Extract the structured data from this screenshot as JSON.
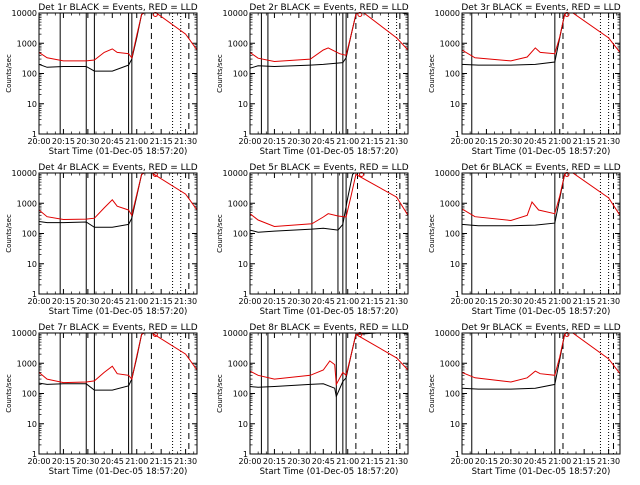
{
  "figure": {
    "x_label": "Start Time (01-Dec-05 18:57:20)",
    "y_label": "Counts/sec"
  },
  "chart_data": [
    {
      "type": "line",
      "title": "Det 1r BLACK = Events, RED = LLD",
      "xlim": [
        "20:00",
        "21:37"
      ],
      "ylim": [
        1,
        10000
      ],
      "y_scale": "log",
      "xticks": [
        "20:00",
        "20:15",
        "20:30",
        "20:45",
        "21:00",
        "21:15",
        "21:30"
      ],
      "yticks": [
        "1",
        "10",
        "100",
        "1000",
        "10000"
      ],
      "solid_markers": [
        "20:13",
        "20:29",
        "20:34",
        "20:55",
        "20:57"
      ],
      "dashed_markers": [
        "21:09",
        "21:32"
      ],
      "dotted_markers": [
        "21:22",
        "21:27"
      ],
      "series": [
        {
          "name": "BLACK = Events",
          "color": "#000000",
          "x": [
            "20:00",
            "20:05",
            "20:15",
            "20:29",
            "20:34",
            "20:45",
            "20:55",
            "20:57",
            "21:00",
            "21:03",
            "21:07",
            "21:10",
            "21:30",
            "21:37"
          ],
          "y": [
            200,
            160,
            170,
            170,
            120,
            120,
            190,
            300,
            1500,
            9000,
            12000,
            12000,
            11000,
            10000
          ]
        },
        {
          "name": "RED = LLD",
          "color": "#e00000",
          "x": [
            "20:00",
            "20:05",
            "20:15",
            "20:29",
            "20:34",
            "20:40",
            "20:45",
            "20:48",
            "20:55",
            "20:57",
            "21:00",
            "21:03",
            "21:07",
            "21:10",
            "21:30",
            "21:37"
          ],
          "y": [
            500,
            330,
            260,
            260,
            280,
            500,
            650,
            500,
            450,
            330,
            1800,
            9000,
            12000,
            12000,
            2000,
            600
          ]
        }
      ]
    },
    {
      "type": "line",
      "title": "Det 2r BLACK = Events, RED = LLD",
      "xlim": [
        "20:00",
        "21:37"
      ],
      "ylim": [
        1,
        10000
      ],
      "y_scale": "log",
      "xticks": [
        "20:00",
        "20:15",
        "20:30",
        "20:45",
        "21:00",
        "21:15",
        "21:30"
      ],
      "yticks": [
        "1",
        "10",
        "100",
        "1000",
        "10000"
      ],
      "solid_markers": [
        "20:07",
        "20:11",
        "20:37",
        "20:53",
        "20:57",
        "20:59"
      ],
      "dashed_markers": [
        "21:05",
        "21:32"
      ],
      "dotted_markers": [
        "21:25",
        "21:30"
      ],
      "series": [
        {
          "name": "BLACK = Events",
          "color": "#000000",
          "x": [
            "20:00",
            "20:05",
            "20:15",
            "20:37",
            "20:45",
            "20:57",
            "20:59",
            "21:02",
            "21:05",
            "21:08",
            "21:30",
            "21:37"
          ],
          "y": [
            150,
            180,
            170,
            190,
            200,
            230,
            330,
            1800,
            9000,
            12000,
            11000,
            9000
          ]
        },
        {
          "name": "RED = LLD",
          "color": "#e00000",
          "x": [
            "20:00",
            "20:05",
            "20:15",
            "20:37",
            "20:45",
            "20:48",
            "20:55",
            "20:59",
            "21:02",
            "21:05",
            "21:08",
            "21:30",
            "21:37"
          ],
          "y": [
            500,
            320,
            250,
            300,
            600,
            700,
            450,
            400,
            1800,
            9000,
            12000,
            1500,
            600
          ]
        }
      ]
    },
    {
      "type": "line",
      "title": "Det 3r BLACK = Events, RED = LLD",
      "xlim": [
        "20:00",
        "21:37"
      ],
      "ylim": [
        1,
        10000
      ],
      "y_scale": "log",
      "xticks": [
        "20:00",
        "20:15",
        "20:30",
        "20:45",
        "21:00",
        "21:15",
        "21:30"
      ],
      "yticks": [
        "1",
        "10",
        "100",
        "1000",
        "10000"
      ],
      "solid_markers": [
        "20:06",
        "20:57"
      ],
      "dashed_markers": [
        "21:02",
        "21:33"
      ],
      "dotted_markers": [
        "21:25",
        "21:30"
      ],
      "series": [
        {
          "name": "BLACK = Events",
          "color": "#000000",
          "x": [
            "20:00",
            "20:10",
            "20:30",
            "20:45",
            "20:57",
            "21:00",
            "21:03",
            "21:06",
            "21:30",
            "21:37"
          ],
          "y": [
            200,
            190,
            190,
            200,
            240,
            1500,
            9000,
            12000,
            11000,
            10000
          ]
        },
        {
          "name": "RED = LLD",
          "color": "#e00000",
          "x": [
            "20:00",
            "20:08",
            "20:30",
            "20:40",
            "20:45",
            "20:48",
            "20:57",
            "21:00",
            "21:03",
            "21:06",
            "21:30",
            "21:37"
          ],
          "y": [
            600,
            330,
            260,
            350,
            700,
            500,
            450,
            1600,
            9000,
            12000,
            1500,
            500
          ]
        }
      ]
    },
    {
      "type": "line",
      "title": "Det 4r BLACK = Events, RED = LLD",
      "xlim": [
        "20:00",
        "21:37"
      ],
      "ylim": [
        1,
        10000
      ],
      "y_scale": "log",
      "xticks": [
        "20:00",
        "20:15",
        "20:30",
        "20:45",
        "21:00",
        "21:15",
        "21:30"
      ],
      "yticks": [
        "1",
        "10",
        "100",
        "1000",
        "10000"
      ],
      "solid_markers": [
        "20:13",
        "20:29",
        "20:34",
        "20:55",
        "20:57"
      ],
      "dashed_markers": [
        "21:09",
        "21:32"
      ],
      "dotted_markers": [
        "21:22",
        "21:27"
      ],
      "series": [
        {
          "name": "BLACK = Events",
          "color": "#000000",
          "x": [
            "20:00",
            "20:05",
            "20:15",
            "20:29",
            "20:34",
            "20:45",
            "20:55",
            "20:57",
            "21:00",
            "21:03",
            "21:07",
            "21:30",
            "21:37"
          ],
          "y": [
            250,
            230,
            230,
            240,
            160,
            160,
            200,
            320,
            1700,
            9000,
            12000,
            11000,
            10000
          ]
        },
        {
          "name": "RED = LLD",
          "color": "#e00000",
          "x": [
            "20:00",
            "20:05",
            "20:15",
            "20:29",
            "20:34",
            "20:40",
            "20:45",
            "20:48",
            "20:55",
            "20:57",
            "21:00",
            "21:03",
            "21:07",
            "21:30",
            "21:37"
          ],
          "y": [
            600,
            360,
            290,
            300,
            320,
            700,
            1300,
            800,
            600,
            400,
            1900,
            9000,
            12000,
            2000,
            600
          ]
        }
      ]
    },
    {
      "type": "line",
      "title": "Det 5r BLACK = Events, RED = LLD",
      "xlim": [
        "20:00",
        "21:37"
      ],
      "ylim": [
        1,
        10000
      ],
      "y_scale": "log",
      "xticks": [
        "20:00",
        "20:15",
        "20:30",
        "20:45",
        "21:00",
        "21:15",
        "21:30"
      ],
      "yticks": [
        "1",
        "10",
        "100",
        "1000",
        "10000"
      ],
      "solid_markers": [
        "20:38",
        "20:54",
        "20:57",
        "20:59"
      ],
      "dashed_markers": [
        "21:06",
        "21:32"
      ],
      "dotted_markers": [
        "21:25",
        "21:30"
      ],
      "series": [
        {
          "name": "BLACK = Events",
          "color": "#000000",
          "x": [
            "20:00",
            "20:05",
            "20:15",
            "20:38",
            "20:45",
            "20:54",
            "20:57",
            "21:00",
            "21:03",
            "21:06",
            "21:30",
            "21:37"
          ],
          "y": [
            130,
            110,
            120,
            140,
            150,
            130,
            200,
            1500,
            9000,
            12000,
            11000,
            10000
          ]
        },
        {
          "name": "RED = LLD",
          "color": "#e00000",
          "x": [
            "20:00",
            "20:05",
            "20:15",
            "20:38",
            "20:45",
            "20:48",
            "20:54",
            "20:59",
            "21:02",
            "21:05",
            "21:30",
            "21:37"
          ],
          "y": [
            450,
            280,
            170,
            210,
            350,
            450,
            380,
            350,
            1700,
            9000,
            1600,
            400
          ]
        }
      ]
    },
    {
      "type": "line",
      "title": "Det 6r BLACK = Events, RED = LLD",
      "xlim": [
        "20:00",
        "21:37"
      ],
      "ylim": [
        1,
        10000
      ],
      "y_scale": "log",
      "xticks": [
        "20:00",
        "20:15",
        "20:30",
        "20:45",
        "21:00",
        "21:15",
        "21:30"
      ],
      "yticks": [
        "1",
        "10",
        "100",
        "1000",
        "10000"
      ],
      "solid_markers": [
        "20:06",
        "20:57"
      ],
      "dashed_markers": [
        "21:02",
        "21:33"
      ],
      "dotted_markers": [
        "21:25",
        "21:30"
      ],
      "series": [
        {
          "name": "BLACK = Events",
          "color": "#000000",
          "x": [
            "20:00",
            "20:10",
            "20:30",
            "20:45",
            "20:57",
            "21:00",
            "21:03",
            "21:06",
            "21:30",
            "21:37"
          ],
          "y": [
            200,
            180,
            180,
            190,
            220,
            1400,
            9000,
            12000,
            11000,
            10000
          ]
        },
        {
          "name": "RED = LLD",
          "color": "#e00000",
          "x": [
            "20:00",
            "20:08",
            "20:30",
            "20:40",
            "20:43",
            "20:47",
            "20:57",
            "21:00",
            "21:03",
            "21:06",
            "21:30",
            "21:37"
          ],
          "y": [
            650,
            360,
            270,
            400,
            1100,
            600,
            450,
            1700,
            9000,
            12000,
            1500,
            400
          ]
        }
      ]
    },
    {
      "type": "line",
      "title": "Det 7r BLACK = Events, RED = LLD",
      "xlim": [
        "20:00",
        "21:37"
      ],
      "ylim": [
        1,
        10000
      ],
      "y_scale": "log",
      "xticks": [
        "20:00",
        "20:15",
        "20:30",
        "20:45",
        "21:00",
        "21:15",
        "21:30"
      ],
      "yticks": [
        "1",
        "10",
        "100",
        "1000",
        "10000"
      ],
      "solid_markers": [
        "20:13",
        "20:29",
        "20:34",
        "20:55",
        "20:57"
      ],
      "dashed_markers": [
        "21:09",
        "21:32"
      ],
      "dotted_markers": [
        "21:22",
        "21:27"
      ],
      "series": [
        {
          "name": "BLACK = Events",
          "color": "#000000",
          "x": [
            "20:00",
            "20:05",
            "20:15",
            "20:29",
            "20:34",
            "20:45",
            "20:55",
            "20:57",
            "21:00",
            "21:03",
            "21:07",
            "21:30",
            "21:37"
          ],
          "y": [
            220,
            200,
            210,
            210,
            130,
            130,
            180,
            300,
            1500,
            9000,
            12000,
            11000,
            10000
          ]
        },
        {
          "name": "RED = LLD",
          "color": "#e00000",
          "x": [
            "20:00",
            "20:05",
            "20:15",
            "20:29",
            "20:34",
            "20:40",
            "20:45",
            "20:48",
            "20:55",
            "20:57",
            "21:00",
            "21:03",
            "21:07",
            "21:30",
            "21:37"
          ],
          "y": [
            500,
            300,
            230,
            240,
            260,
            500,
            800,
            450,
            400,
            300,
            1700,
            9000,
            12000,
            2000,
            600
          ]
        }
      ]
    },
    {
      "type": "line",
      "title": "Det 8r BLACK = Events, RED = LLD",
      "xlim": [
        "20:00",
        "21:37"
      ],
      "ylim": [
        1,
        10000
      ],
      "y_scale": "log",
      "xticks": [
        "20:00",
        "20:15",
        "20:30",
        "20:45",
        "21:00",
        "21:15",
        "21:30"
      ],
      "yticks": [
        "1",
        "10",
        "100",
        "1000",
        "10000"
      ],
      "solid_markers": [
        "20:07",
        "20:11",
        "20:37",
        "20:53",
        "20:57",
        "20:59"
      ],
      "dashed_markers": [
        "21:05",
        "21:32"
      ],
      "dotted_markers": [
        "21:25",
        "21:30"
      ],
      "series": [
        {
          "name": "BLACK = Events",
          "color": "#000000",
          "x": [
            "20:00",
            "20:05",
            "20:15",
            "20:37",
            "20:45",
            "20:52",
            "20:53",
            "20:57",
            "20:59",
            "21:02",
            "21:05",
            "21:30",
            "21:37"
          ],
          "y": [
            170,
            160,
            170,
            200,
            210,
            150,
            80,
            250,
            330,
            1800,
            9000,
            11000,
            9000
          ]
        },
        {
          "name": "RED = LLD",
          "color": "#e00000",
          "x": [
            "20:00",
            "20:05",
            "20:15",
            "20:37",
            "20:45",
            "20:49",
            "20:52",
            "20:53",
            "20:57",
            "20:59",
            "21:02",
            "21:05",
            "21:30",
            "21:37"
          ],
          "y": [
            550,
            400,
            300,
            400,
            600,
            1200,
            900,
            200,
            500,
            400,
            1800,
            9000,
            1500,
            600
          ]
        }
      ]
    },
    {
      "type": "line",
      "title": "Det 9r BLACK = Events, RED = LLD",
      "xlim": [
        "20:00",
        "21:37"
      ],
      "ylim": [
        1,
        10000
      ],
      "y_scale": "log",
      "xticks": [
        "20:00",
        "20:15",
        "20:30",
        "20:45",
        "21:00",
        "21:15",
        "21:30"
      ],
      "yticks": [
        "1",
        "10",
        "100",
        "1000",
        "10000"
      ],
      "solid_markers": [
        "20:06",
        "20:57"
      ],
      "dashed_markers": [
        "21:02",
        "21:33"
      ],
      "dotted_markers": [
        "21:25",
        "21:30"
      ],
      "series": [
        {
          "name": "BLACK = Events",
          "color": "#000000",
          "x": [
            "20:00",
            "20:10",
            "20:30",
            "20:45",
            "20:57",
            "21:00",
            "21:03",
            "21:06",
            "21:30",
            "21:37"
          ],
          "y": [
            150,
            140,
            140,
            150,
            200,
            1300,
            9000,
            12000,
            11000,
            10000
          ]
        },
        {
          "name": "RED = LLD",
          "color": "#e00000",
          "x": [
            "20:00",
            "20:08",
            "20:30",
            "20:40",
            "20:45",
            "20:48",
            "20:57",
            "21:00",
            "21:03",
            "21:06",
            "21:30",
            "21:37"
          ],
          "y": [
            500,
            330,
            240,
            330,
            550,
            450,
            400,
            1600,
            9000,
            12000,
            1400,
            450
          ]
        }
      ]
    }
  ]
}
